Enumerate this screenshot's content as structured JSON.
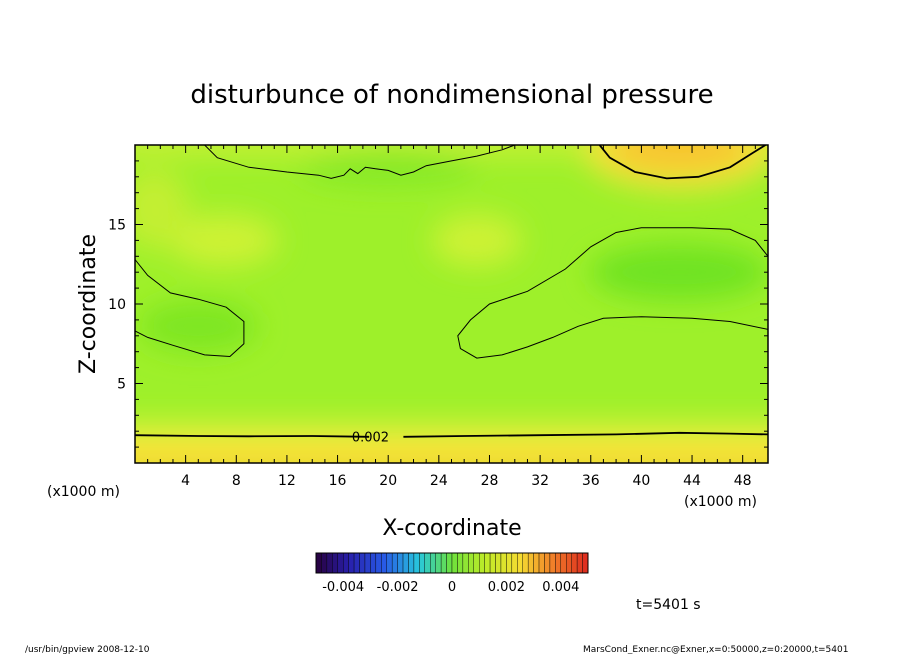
{
  "chart_data": {
    "type": "heatmap",
    "title": "disturbunce of nondimensional pressure",
    "xlabel": "X-coordinate",
    "ylabel": "Z-coordinate",
    "x_unit": "(x1000 m)",
    "z_unit": "(x1000 m)",
    "xlim": [
      0,
      50
    ],
    "ylim": [
      0,
      20
    ],
    "x_ticks": [
      4,
      8,
      12,
      16,
      20,
      24,
      28,
      32,
      36,
      40,
      44,
      48
    ],
    "y_ticks": [
      5,
      10,
      15
    ],
    "contour_levels": [
      0,
      0.002
    ],
    "contour_labels": [
      {
        "text": "0.002",
        "x": 18.6,
        "z": 1.4
      }
    ],
    "colorbar": {
      "range": [
        -0.005,
        0.005
      ],
      "tick_labels": [
        "-0.004",
        "-0.002",
        "0",
        "0.002",
        "0.004"
      ],
      "tick_values": [
        -0.004,
        -0.002,
        0,
        0.002,
        0.004
      ]
    },
    "field_description": "near-uniform green field (about -0.001 to 0) with yellow/orange positive band near z<2 km and a positive maximum near x=43 km at the top boundary",
    "value_ranges": {
      "background": -0.0005,
      "lower_band_max": 0.0028,
      "upper_right_max": 0.0026,
      "left_minimum": -0.0012,
      "right_minimum": -0.0014
    }
  },
  "annotations": {
    "time": "t=5401 s",
    "footer_left": "/usr/bin/gpview   2008-12-10",
    "footer_right": "MarsCond_Exner.nc@Exner,x=0:50000,z=0:20000,t=5401"
  }
}
